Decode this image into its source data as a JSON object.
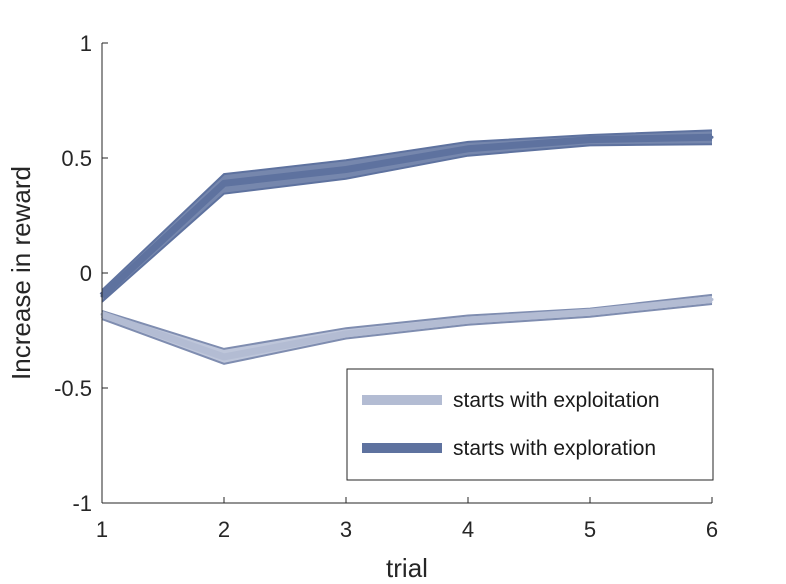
{
  "chart_data": {
    "type": "line",
    "title": "",
    "xlabel": "trial",
    "ylabel": "Increase in reward",
    "x": [
      1,
      2,
      3,
      4,
      5,
      6
    ],
    "xlim": [
      1,
      6
    ],
    "ylim": [
      -1,
      1
    ],
    "xticks": [
      "1",
      "2",
      "3",
      "4",
      "5",
      "6"
    ],
    "yticks": [
      "-1",
      "-0.5",
      "0",
      "0.5",
      "1"
    ],
    "grid": false,
    "legend_position": "bottom-right",
    "series": [
      {
        "name": "starts with exploitation",
        "color": "#b3bcd3",
        "edge_color": "#7f8db0",
        "values": [
          -0.18,
          -0.365,
          -0.265,
          -0.205,
          -0.17,
          -0.115
        ],
        "upper": [
          -0.165,
          -0.33,
          -0.24,
          -0.185,
          -0.155,
          -0.095
        ],
        "lower": [
          -0.2,
          -0.395,
          -0.285,
          -0.225,
          -0.19,
          -0.135
        ]
      },
      {
        "name": "starts with exploration",
        "color": "#5e729f",
        "edge_color": "#5e729f",
        "values": [
          -0.1,
          0.39,
          0.45,
          0.54,
          0.58,
          0.59
        ],
        "upper": [
          -0.075,
          0.43,
          0.49,
          0.57,
          0.6,
          0.62
        ],
        "lower": [
          -0.125,
          0.345,
          0.41,
          0.51,
          0.555,
          0.56
        ]
      }
    ]
  }
}
